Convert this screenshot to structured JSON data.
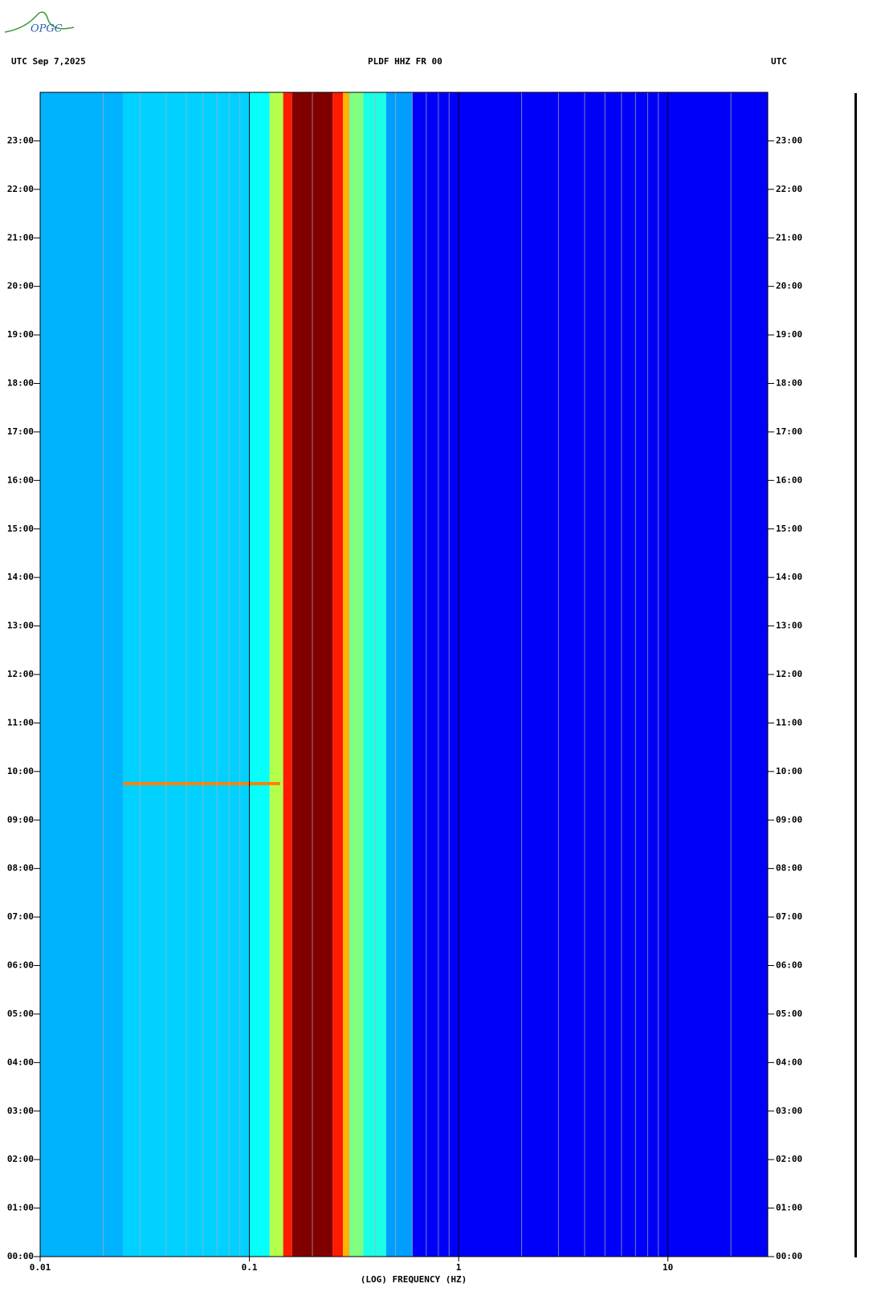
{
  "logo": "OPGC",
  "chart_data": {
    "type": "spectrogram",
    "title": "PLDF HHZ FR 00",
    "subtitle": "UTC  Sep 7,2025",
    "right_label": "UTC",
    "xlabel": "(LOG) FREQUENCY (HZ)",
    "xscale": "log",
    "xlim": [
      0.01,
      30
    ],
    "xticks": [
      {
        "value": 0.01,
        "label": "0.01"
      },
      {
        "value": 0.1,
        "label": "0.1"
      },
      1,
      10
    ],
    "xminorticks": [
      0.02,
      0.03,
      0.04,
      0.05,
      0.06,
      0.07,
      0.08,
      0.09,
      0.2,
      0.3,
      0.4,
      0.5,
      0.6,
      0.7,
      0.8,
      0.9,
      2,
      3,
      4,
      5,
      6,
      7,
      8,
      9,
      20
    ],
    "ylim": [
      0,
      24
    ],
    "yticks": [
      {
        "value": 0,
        "label": "00:00"
      },
      {
        "value": 1,
        "label": "01:00"
      },
      {
        "value": 2,
        "label": "02:00"
      },
      {
        "value": 3,
        "label": "03:00"
      },
      {
        "value": 4,
        "label": "04:00"
      },
      {
        "value": 5,
        "label": "05:00"
      },
      {
        "value": 6,
        "label": "06:00"
      },
      {
        "value": 7,
        "label": "07:00"
      },
      {
        "value": 8,
        "label": "08:00"
      },
      {
        "value": 9,
        "label": "09:00"
      },
      {
        "value": 10,
        "label": "10:00"
      },
      {
        "value": 11,
        "label": "11:00"
      },
      {
        "value": 12,
        "label": "12:00"
      },
      {
        "value": 13,
        "label": "13:00"
      },
      {
        "value": 14,
        "label": "14:00"
      },
      {
        "value": 15,
        "label": "15:00"
      },
      {
        "value": 16,
        "label": "16:00"
      },
      {
        "value": 17,
        "label": "17:00"
      },
      {
        "value": 18,
        "label": "18:00"
      },
      {
        "value": 19,
        "label": "19:00"
      },
      {
        "value": 20,
        "label": "20:00"
      },
      {
        "value": 21,
        "label": "21:00"
      },
      {
        "value": 22,
        "label": "22:00"
      },
      {
        "value": 23,
        "label": "23:00"
      }
    ],
    "bins": [
      0.01,
      0.025,
      0.1,
      0.125,
      0.145,
      0.16,
      0.25,
      0.28,
      0.3,
      0.35,
      0.45,
      0.6,
      30
    ],
    "levels": [
      0.3,
      0.33,
      0.38,
      0.55,
      0.85,
      1.0,
      0.85,
      0.7,
      0.5,
      0.4,
      0.28,
      0.12
    ],
    "events": [
      {
        "time": 9.75,
        "fmin": 0.025,
        "fmax": 0.14,
        "level": 0.75
      }
    ]
  }
}
